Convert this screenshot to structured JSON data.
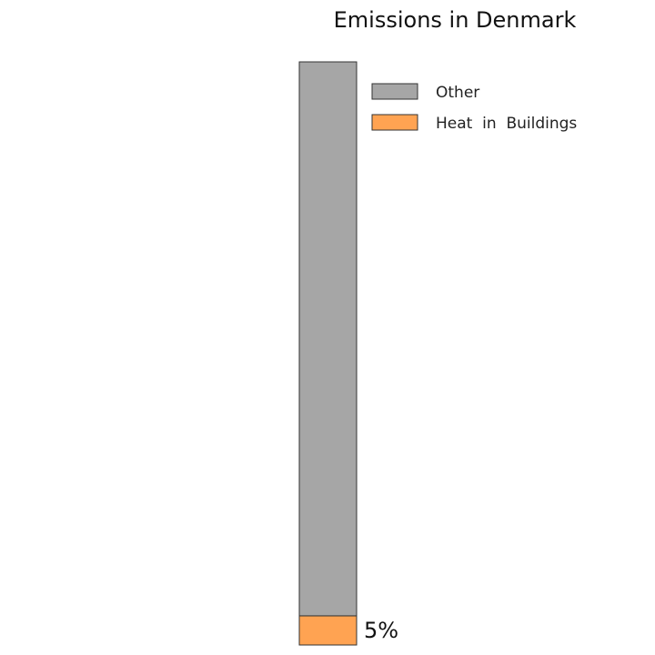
{
  "chart_data": {
    "type": "bar",
    "stacked": true,
    "title": "Emissions  in  Denmark",
    "unit": "%",
    "ylim": [
      0,
      100
    ],
    "grid": false,
    "axes_visible": false,
    "legend_position": "top-right",
    "series": [
      {
        "name": "Heat  in  Buildings",
        "value": 5,
        "color": "#FFA352",
        "label": "5%"
      },
      {
        "name": "Other",
        "value": 95,
        "color": "#A6A6A6"
      }
    ],
    "legend_order": [
      "Other",
      "Heat  in  Buildings"
    ]
  }
}
